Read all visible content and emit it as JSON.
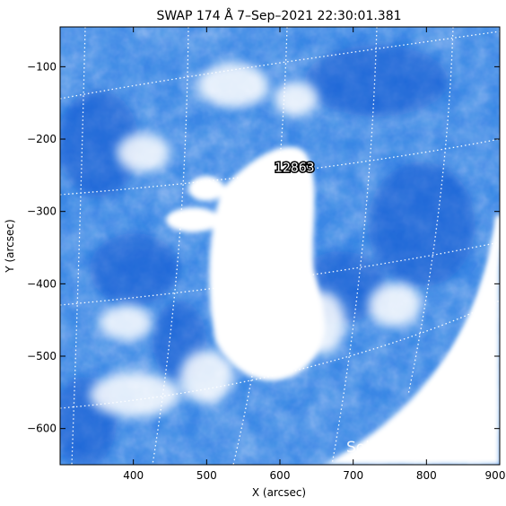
{
  "title": "SWAP 174 Å  7–Sep–2021 22:30:01.381",
  "xlabel": "X (arcsec)",
  "ylabel": "Y (arcsec)",
  "x_ticks": [
    400,
    500,
    600,
    700,
    800,
    900
  ],
  "y_ticks": [
    -100,
    -200,
    -300,
    -400,
    -500,
    -600
  ],
  "xlim": [
    300,
    900
  ],
  "ylim": [
    -650,
    -45
  ],
  "active_region_label": "12863",
  "active_region_position": {
    "x_arcsec": 620,
    "y_arcsec": -245
  },
  "watermark": "SolarMonitor.org",
  "colors": {
    "background": "#0a4fd0",
    "bright": "#ffffff",
    "mid": "#7fb2f2"
  }
}
